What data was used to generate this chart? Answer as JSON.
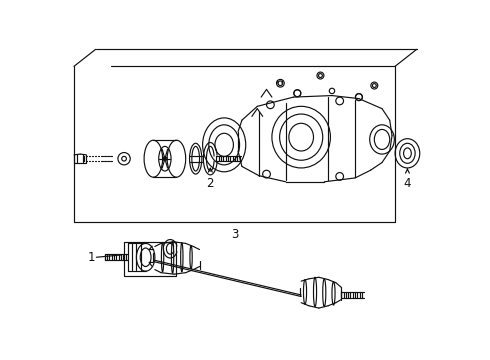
{
  "bg_color": "#ffffff",
  "lc": "#111111",
  "lw": 0.85,
  "label_1": "1",
  "label_2": "2",
  "label_3": "3",
  "label_4": "4"
}
